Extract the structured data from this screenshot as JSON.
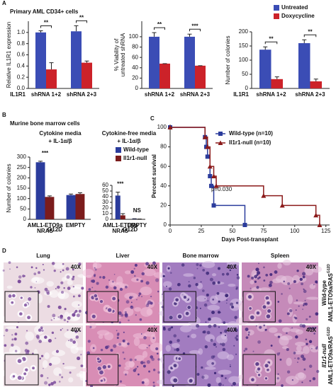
{
  "panel_A": {
    "label": "A",
    "title": "Primary AML CD34+ cells"
  },
  "panel_B": {
    "label": "B",
    "title": "Murine bone marrow cells"
  },
  "panel_C": {
    "label": "C"
  },
  "chart_data": [
    {
      "type": "bar",
      "y_label": [
        "Relative IL1R1 expression"
      ],
      "row_label": "IL1R1",
      "categories": [
        [
          "shRNA 1+2"
        ],
        [
          "shRNA 2+3"
        ]
      ],
      "series": [
        {
          "color": "#3b4db5",
          "values": [
            1.0,
            1.02
          ],
          "errors": [
            0.03,
            0.1
          ]
        },
        {
          "color": "#cc2229",
          "values": [
            0.34,
            0.46
          ],
          "errors": [
            0.12,
            0.03
          ]
        }
      ],
      "significance": [
        "**",
        "**"
      ],
      "ylim": [
        0,
        1.2
      ],
      "yticks": [
        {
          "value": 0,
          "label": "0.0"
        },
        {
          "value": 0.2,
          "label": "0.2"
        },
        {
          "value": 0.4,
          "label": "0.4"
        },
        {
          "value": 0.6,
          "label": "0.6"
        },
        {
          "value": 0.8,
          "label": "0.8"
        },
        {
          "value": 1,
          "label": "1.0"
        }
      ]
    },
    {
      "type": "bar",
      "y_label": [
        "% Viability of",
        "untreated shRNA"
      ],
      "categories": [
        [
          "shRNA 1+2"
        ],
        [
          "shRNA 2+3"
        ]
      ],
      "series": [
        {
          "color": "#3b4db5",
          "values": [
            100,
            100
          ],
          "errors": [
            8,
            5
          ]
        },
        {
          "color": "#cc2229",
          "values": [
            48,
            44
          ],
          "errors": [
            0,
            0
          ]
        }
      ],
      "significance": [
        "**",
        "***"
      ],
      "ylim": [
        0,
        130
      ],
      "yticks": [
        0,
        20,
        40,
        60,
        80,
        100
      ]
    },
    {
      "type": "bar",
      "y_label": [
        "Number of colonies"
      ],
      "row_label": "IL1R1",
      "categories": [
        [
          "shRNA 1+2"
        ],
        [
          "shRNA 2+3"
        ]
      ],
      "series": [
        {
          "name": "Untreated",
          "color": "#3b4db5",
          "values": [
            137,
            160
          ],
          "errors": [
            10,
            12
          ]
        },
        {
          "name": "Doxycycline",
          "color": "#cc2229",
          "values": [
            33,
            25
          ],
          "errors": [
            8,
            8
          ]
        }
      ],
      "significance": [
        "**",
        "**"
      ],
      "ylim": [
        0,
        200
      ],
      "yticks": [
        0,
        50,
        100,
        150,
        200
      ]
    },
    {
      "type": "bar",
      "subtitle": [
        "Cytokine media",
        "+ IL-1α/β"
      ],
      "y_label": [
        "Number of colonies"
      ],
      "categories": [
        [
          "AML1-ETO9a",
          "NRAS",
          "G12D"
        ],
        [
          "EMPTY"
        ]
      ],
      "series": [
        {
          "color": "#2b3c9c",
          "values": [
            275,
            117
          ],
          "errors": [
            5,
            5
          ]
        },
        {
          "color": "#7b1c1c",
          "values": [
            108,
            122
          ],
          "errors": [
            5,
            6
          ]
        }
      ],
      "significance": [
        "***",
        null
      ],
      "ylim": [
        0,
        300
      ],
      "yticks": [
        0,
        50,
        100,
        150,
        200,
        250,
        300
      ]
    },
    {
      "type": "bar",
      "subtitle": [
        "Cytokine-free media",
        "+ IL-1α/β"
      ],
      "categories": [
        [
          "AML1-ETO9a",
          "NRAS",
          "G12D"
        ],
        [
          "EMPTY"
        ]
      ],
      "series": [
        {
          "name": "Wild-type",
          "color": "#2b3c9c",
          "values": [
            42,
            0.8
          ],
          "errors": [
            6,
            0.3
          ]
        },
        {
          "name": "Il1r1-null",
          "color": "#7b1c1c",
          "values": [
            7,
            0.5
          ],
          "errors": [
            3,
            0.2
          ]
        }
      ],
      "significance": [
        "***",
        "NS"
      ],
      "ylim": [
        0,
        60
      ],
      "yticks": [
        0,
        10,
        20,
        30,
        40,
        50,
        60
      ]
    },
    {
      "type": "survival",
      "x_label": "Days Post-transplant",
      "y_label": "Percent survival",
      "annotation": "p=0.030",
      "series": [
        {
          "name": "Wild-type (n=10)",
          "color": "#2b3c9c",
          "marker": "square",
          "x": [
            0,
            28,
            29,
            30,
            32,
            33,
            35,
            60
          ],
          "values": [
            100,
            90,
            80,
            70,
            50,
            40,
            20,
            0
          ]
        },
        {
          "name": "Il1r1-null (n=10)",
          "color": "#8b1a1a",
          "marker": "triangle",
          "x": [
            0,
            28,
            30,
            32,
            35,
            37,
            75,
            90,
            117,
            120
          ],
          "values": [
            100,
            90,
            80,
            60,
            50,
            40,
            30,
            20,
            10,
            0
          ]
        }
      ],
      "xlim": [
        0,
        128
      ],
      "xticks": [
        0,
        25,
        50,
        75,
        100,
        125
      ],
      "ylim": [
        0,
        100
      ],
      "yticks": [
        0,
        20,
        40,
        60,
        80,
        100
      ]
    }
  ],
  "panel_D": {
    "label": "D",
    "columns": [
      "Lung",
      "Liver",
      "Bone marrow",
      "Spleen"
    ],
    "magnification": "40X",
    "rows": [
      {
        "lines": [
          "Wild-type",
          "AML1-ETO9a/RAS",
          "G12D"
        ]
      },
      {
        "lines": [
          "Il1r1-null",
          "AML1-ETO9a/RAS",
          "G12D"
        ]
      }
    ]
  }
}
